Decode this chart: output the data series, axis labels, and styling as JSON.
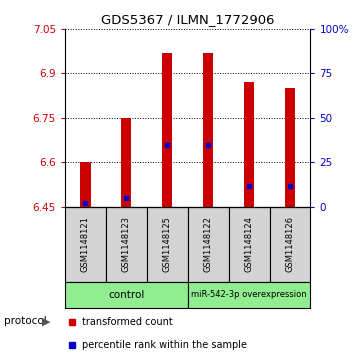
{
  "title": "GDS5367 / ILMN_1772906",
  "samples": [
    "GSM1148121",
    "GSM1148123",
    "GSM1148125",
    "GSM1148122",
    "GSM1148124",
    "GSM1148126"
  ],
  "transformed_counts": [
    6.6,
    6.75,
    6.97,
    6.97,
    6.87,
    6.85
  ],
  "percentile_ranks": [
    2,
    5,
    35,
    35,
    12,
    12
  ],
  "ymin": 6.45,
  "ymax": 7.05,
  "yticks": [
    6.45,
    6.6,
    6.75,
    6.9,
    7.05
  ],
  "right_yticks": [
    0,
    25,
    50,
    75,
    100
  ],
  "bar_color": "#cc0000",
  "percentile_color": "#0000cc",
  "bar_width": 0.25,
  "sample_bg_color": "#d3d3d3",
  "control_color": "#90ee90",
  "mir_color": "#90ee90",
  "legend_bar_color": "#cc0000",
  "legend_percentile_color": "#0000cc"
}
